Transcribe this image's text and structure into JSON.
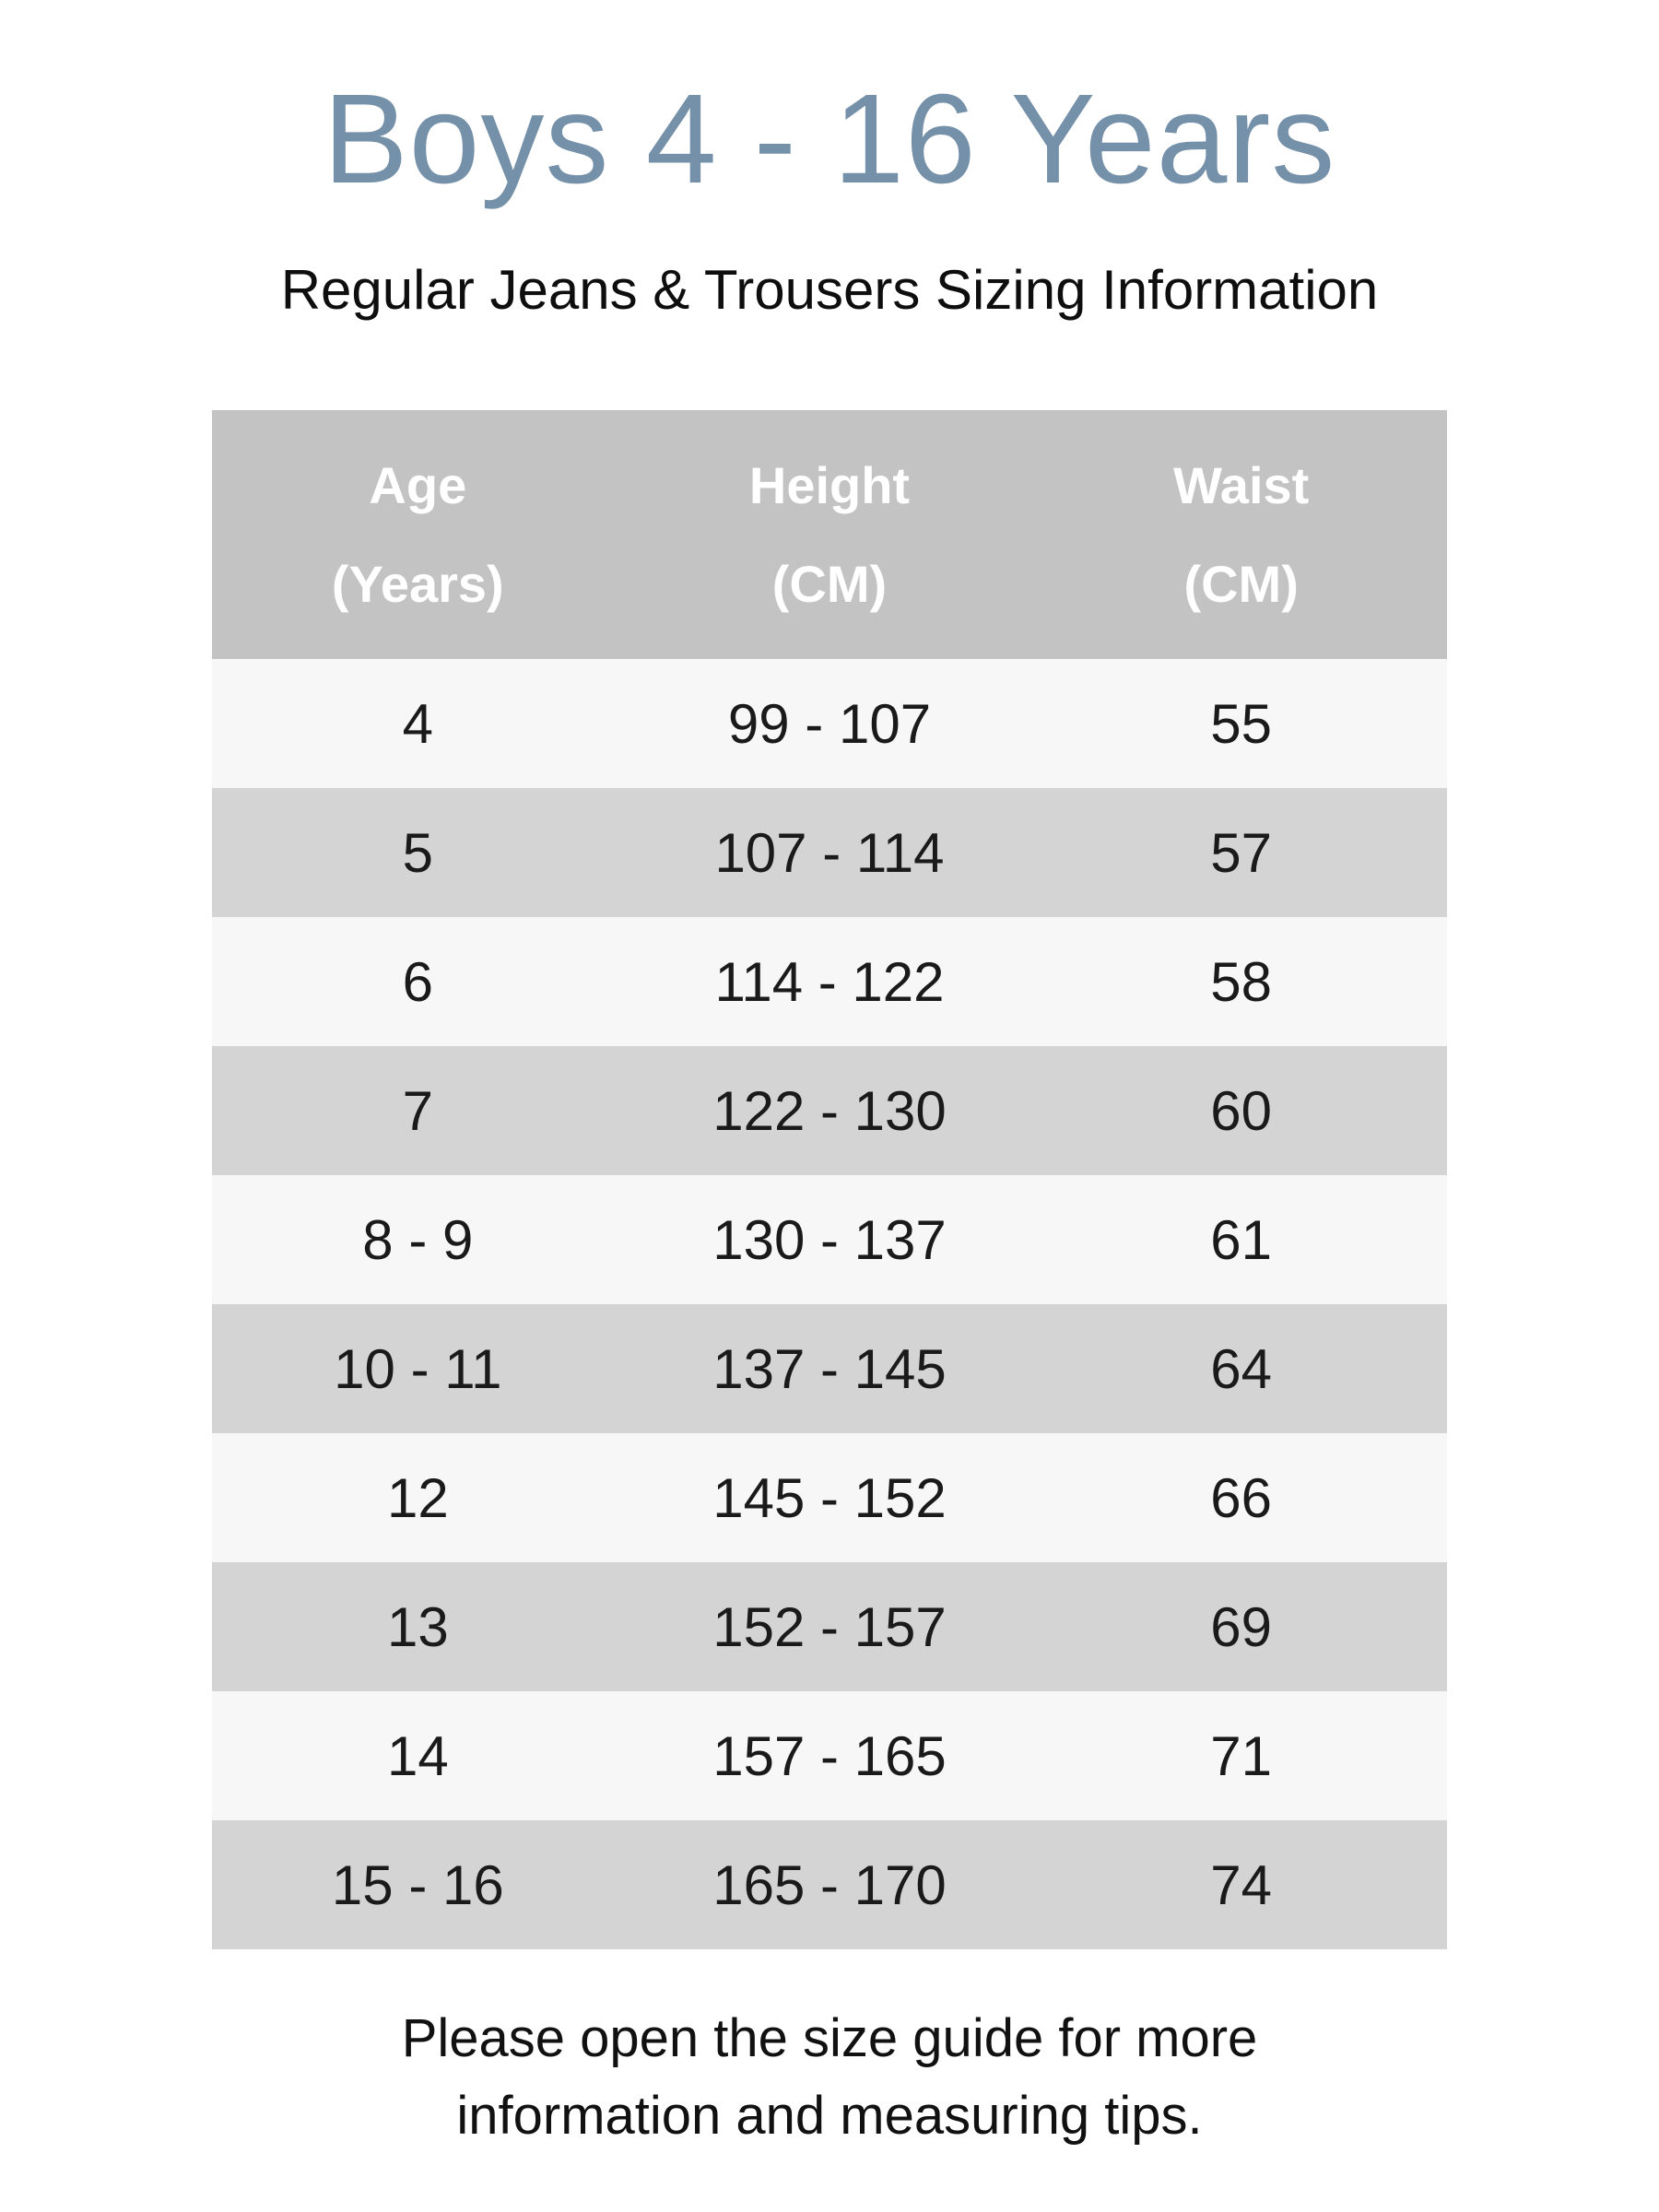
{
  "page": {
    "title": "Boys 4 - 16 Years",
    "subtitle": "Regular Jeans & Trousers Sizing Information",
    "footer": {
      "line1": "Please open the size guide for more",
      "line2": "information and measuring tips."
    },
    "colors": {
      "title": "#7590a9",
      "header_bg": "#c3c3c3",
      "header_text": "#ffffff",
      "row_light": "#f7f7f7",
      "row_dark": "#d4d4d4",
      "body_text": "#1a1a1a"
    }
  },
  "size_table": {
    "columns": [
      {
        "line1": "Age",
        "line2": "(Years)"
      },
      {
        "line1": "Height",
        "line2": "(CM)"
      },
      {
        "line1": "Waist",
        "line2": "(CM)"
      }
    ],
    "rows": [
      {
        "age": "4",
        "height": "99 - 107",
        "waist": "55"
      },
      {
        "age": "5",
        "height": "107 - 114",
        "waist": "57"
      },
      {
        "age": "6",
        "height": "114 - 122",
        "waist": "58"
      },
      {
        "age": "7",
        "height": "122 - 130",
        "waist": "60"
      },
      {
        "age": "8 - 9",
        "height": "130 - 137",
        "waist": "61"
      },
      {
        "age": "10 - 11",
        "height": "137 - 145",
        "waist": "64"
      },
      {
        "age": "12",
        "height": "145 - 152",
        "waist": "66"
      },
      {
        "age": "13",
        "height": "152 - 157",
        "waist": "69"
      },
      {
        "age": "14",
        "height": "157 - 165",
        "waist": "71"
      },
      {
        "age": "15 - 16",
        "height": "165 - 170",
        "waist": "74"
      }
    ]
  }
}
